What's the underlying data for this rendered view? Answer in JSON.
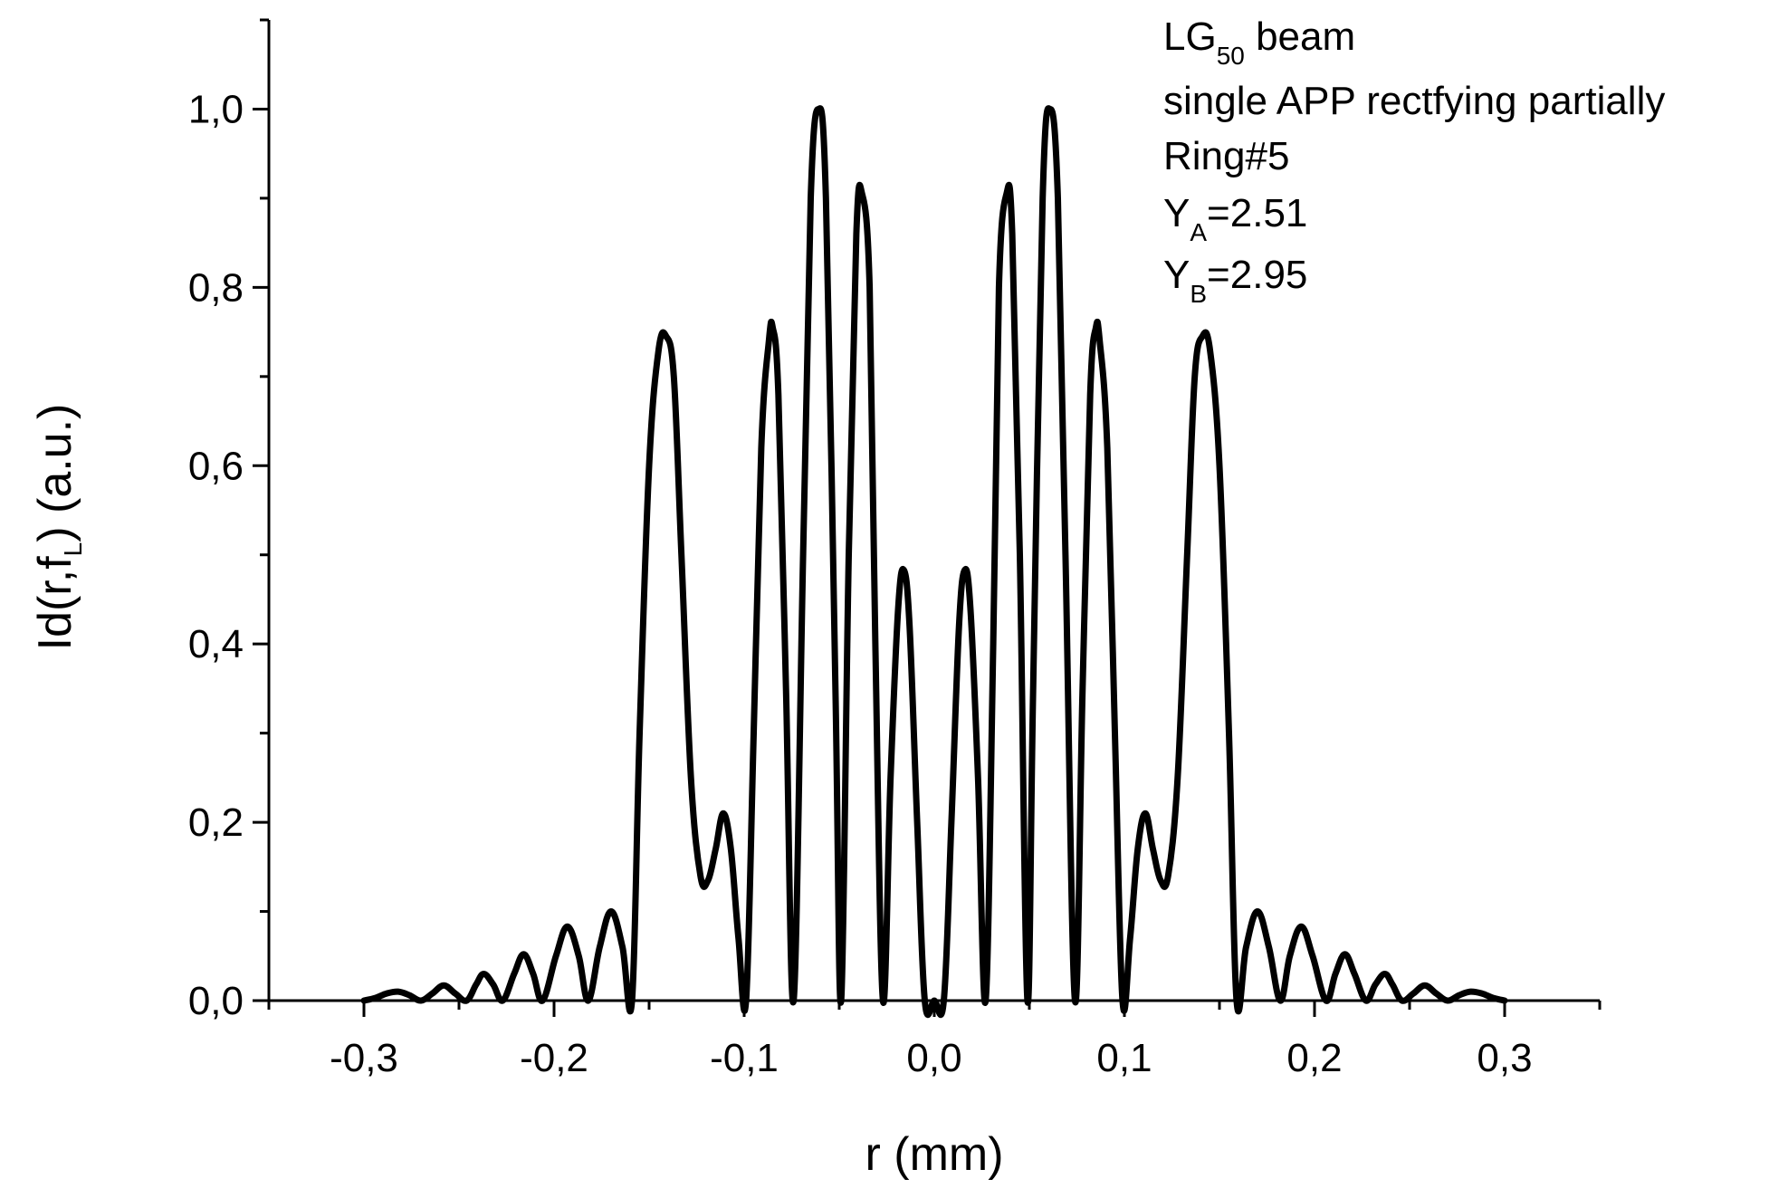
{
  "chart_data": {
    "type": "line",
    "title": "",
    "xlabel": "r (mm)",
    "ylabel_main": "Id(r,f",
    "ylabel_sub": "L",
    "ylabel_tail": ") (a.u.)",
    "xlim": [
      -0.35,
      0.35
    ],
    "ylim": [
      0,
      1.1
    ],
    "xticks": [
      -0.3,
      -0.2,
      -0.1,
      0.0,
      0.1,
      0.2,
      0.3
    ],
    "xtick_labels": [
      "-0,3",
      "-0,2",
      "-0,1",
      "0,0",
      "0,1",
      "0,2",
      "0,3"
    ],
    "yticks": [
      0.0,
      0.2,
      0.4,
      0.6,
      0.8,
      1.0
    ],
    "ytick_labels": [
      "0,0",
      "0,2",
      "0,4",
      "0,6",
      "0,8",
      "1,0"
    ],
    "grid": false,
    "annotations": {
      "line1_main": "LG",
      "line1_sub": "50",
      "line1_tail": " beam",
      "line2": "single APP rectfying partially",
      "line3": "Ring#5",
      "line4_main": "Y",
      "line4_sub": "A",
      "line4_tail": "=2.51",
      "line5_main": "Y",
      "line5_sub": "B",
      "line5_tail": "=2.95"
    },
    "series": [
      {
        "color": "#000000",
        "points": [
          [
            -0.3,
            0.0
          ],
          [
            -0.294,
            0.003
          ],
          [
            -0.288,
            0.008
          ],
          [
            -0.282,
            0.01
          ],
          [
            -0.276,
            0.006
          ],
          [
            -0.27,
            0.0
          ],
          [
            -0.264,
            0.008
          ],
          [
            -0.258,
            0.017
          ],
          [
            -0.252,
            0.008
          ],
          [
            -0.246,
            0.0
          ],
          [
            -0.241,
            0.018
          ],
          [
            -0.237,
            0.03
          ],
          [
            -0.232,
            0.018
          ],
          [
            -0.227,
            0.0
          ],
          [
            -0.221,
            0.03
          ],
          [
            -0.216,
            0.052
          ],
          [
            -0.211,
            0.03
          ],
          [
            -0.206,
            0.0
          ],
          [
            -0.199,
            0.05
          ],
          [
            -0.193,
            0.083
          ],
          [
            -0.187,
            0.05
          ],
          [
            -0.182,
            0.0
          ],
          [
            -0.176,
            0.06
          ],
          [
            -0.17,
            0.1
          ],
          [
            -0.164,
            0.06
          ],
          [
            -0.159,
            0.0
          ],
          [
            -0.155,
            0.3
          ],
          [
            -0.15,
            0.6
          ],
          [
            -0.145,
            0.73
          ],
          [
            -0.141,
            0.745
          ],
          [
            -0.137,
            0.7
          ],
          [
            -0.133,
            0.5
          ],
          [
            -0.128,
            0.25
          ],
          [
            -0.123,
            0.14
          ],
          [
            -0.119,
            0.135
          ],
          [
            -0.115,
            0.17
          ],
          [
            -0.111,
            0.21
          ],
          [
            -0.107,
            0.17
          ],
          [
            -0.103,
            0.07
          ],
          [
            -0.099,
            0.0
          ],
          [
            -0.095,
            0.3
          ],
          [
            -0.091,
            0.62
          ],
          [
            -0.087,
            0.74
          ],
          [
            -0.085,
            0.755
          ],
          [
            -0.082,
            0.68
          ],
          [
            -0.078,
            0.35
          ],
          [
            -0.074,
            0.0
          ],
          [
            -0.069,
            0.5
          ],
          [
            -0.065,
            0.9
          ],
          [
            -0.061,
            1.0
          ],
          [
            -0.057,
            0.9
          ],
          [
            -0.052,
            0.35
          ],
          [
            -0.049,
            0.0
          ],
          [
            -0.045,
            0.5
          ],
          [
            -0.041,
            0.86
          ],
          [
            -0.038,
            0.905
          ],
          [
            -0.034,
            0.8
          ],
          [
            -0.031,
            0.4
          ],
          [
            -0.027,
            0.0
          ],
          [
            -0.023,
            0.25
          ],
          [
            -0.019,
            0.44
          ],
          [
            -0.016,
            0.483
          ],
          [
            -0.013,
            0.42
          ],
          [
            -0.009,
            0.2
          ],
          [
            -0.005,
            0.0
          ],
          [
            0.0,
            0.0
          ],
          [
            0.005,
            0.0
          ],
          [
            0.009,
            0.2
          ],
          [
            0.013,
            0.42
          ],
          [
            0.016,
            0.483
          ],
          [
            0.019,
            0.44
          ],
          [
            0.023,
            0.25
          ],
          [
            0.027,
            0.0
          ],
          [
            0.031,
            0.4
          ],
          [
            0.034,
            0.8
          ],
          [
            0.038,
            0.905
          ],
          [
            0.041,
            0.86
          ],
          [
            0.045,
            0.5
          ],
          [
            0.049,
            0.0
          ],
          [
            0.052,
            0.35
          ],
          [
            0.057,
            0.9
          ],
          [
            0.061,
            1.0
          ],
          [
            0.065,
            0.9
          ],
          [
            0.069,
            0.5
          ],
          [
            0.074,
            0.0
          ],
          [
            0.078,
            0.35
          ],
          [
            0.082,
            0.68
          ],
          [
            0.085,
            0.755
          ],
          [
            0.087,
            0.74
          ],
          [
            0.091,
            0.62
          ],
          [
            0.095,
            0.3
          ],
          [
            0.099,
            0.0
          ],
          [
            0.103,
            0.07
          ],
          [
            0.107,
            0.17
          ],
          [
            0.111,
            0.21
          ],
          [
            0.115,
            0.17
          ],
          [
            0.119,
            0.135
          ],
          [
            0.123,
            0.14
          ],
          [
            0.128,
            0.25
          ],
          [
            0.133,
            0.5
          ],
          [
            0.137,
            0.7
          ],
          [
            0.141,
            0.745
          ],
          [
            0.145,
            0.73
          ],
          [
            0.15,
            0.6
          ],
          [
            0.155,
            0.3
          ],
          [
            0.159,
            0.0
          ],
          [
            0.164,
            0.06
          ],
          [
            0.17,
            0.1
          ],
          [
            0.176,
            0.06
          ],
          [
            0.182,
            0.0
          ],
          [
            0.187,
            0.05
          ],
          [
            0.193,
            0.083
          ],
          [
            0.199,
            0.05
          ],
          [
            0.206,
            0.0
          ],
          [
            0.211,
            0.03
          ],
          [
            0.216,
            0.052
          ],
          [
            0.221,
            0.03
          ],
          [
            0.227,
            0.0
          ],
          [
            0.232,
            0.018
          ],
          [
            0.237,
            0.03
          ],
          [
            0.241,
            0.018
          ],
          [
            0.246,
            0.0
          ],
          [
            0.252,
            0.008
          ],
          [
            0.258,
            0.017
          ],
          [
            0.264,
            0.008
          ],
          [
            0.27,
            0.0
          ],
          [
            0.276,
            0.006
          ],
          [
            0.282,
            0.01
          ],
          [
            0.288,
            0.008
          ],
          [
            0.294,
            0.003
          ],
          [
            0.3,
            0.0
          ]
        ]
      }
    ]
  }
}
